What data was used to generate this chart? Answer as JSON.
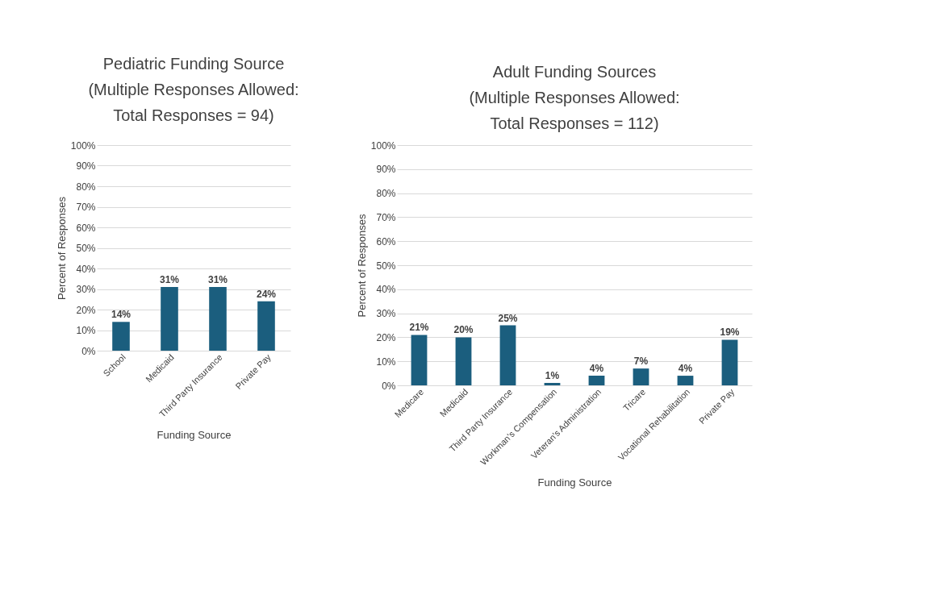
{
  "chart_data": [
    {
      "type": "bar",
      "title": "Pediatric Funding Source\n(Multiple Responses Allowed:\nTotal Responses = 94)",
      "xlabel": "Funding Source",
      "ylabel": "Percent of Responses",
      "categories": [
        "School",
        "Medicaid",
        "Third Party Insurance",
        "Private Pay"
      ],
      "series": [
        {
          "color": "#1b5e7e",
          "values": [
            14,
            31,
            31,
            24
          ],
          "value_labels": [
            "14%",
            "31%",
            "31%",
            "24%"
          ]
        }
      ],
      "ylim": [
        0,
        100
      ],
      "yticks": [
        {
          "value": 0,
          "label": "0%"
        },
        {
          "value": 10,
          "label": "10%"
        },
        {
          "value": 20,
          "label": "20%"
        },
        {
          "value": 30,
          "label": "30%"
        },
        {
          "value": 40,
          "label": "40%"
        },
        {
          "value": 50,
          "label": "50%"
        },
        {
          "value": 60,
          "label": "60%"
        },
        {
          "value": 70,
          "label": "70%"
        },
        {
          "value": 80,
          "label": "80%"
        },
        {
          "value": 90,
          "label": "90%"
        },
        {
          "value": 100,
          "label": "100%"
        }
      ],
      "grid": "y"
    },
    {
      "type": "bar",
      "title": "Adult Funding Sources\n(Multiple Responses Allowed:\nTotal Responses = 112)",
      "xlabel": "Funding Source",
      "ylabel": "Percent of Responses",
      "categories": [
        "Medicare",
        "Medicaid",
        "Third Party Insurance",
        "Workman's Compensation",
        "Veteran's Administration",
        "Tricare",
        "Vocational Rehabilitation",
        "Private Pay"
      ],
      "series": [
        {
          "color": "#1b5e7e",
          "values": [
            21,
            20,
            25,
            1,
            4,
            7,
            4,
            19
          ],
          "value_labels": [
            "21%",
            "20%",
            "25%",
            "1%",
            "4%",
            "7%",
            "4%",
            "19%"
          ]
        }
      ],
      "ylim": [
        0,
        100
      ],
      "yticks": [
        {
          "value": 0,
          "label": "0%"
        },
        {
          "value": 10,
          "label": "10%"
        },
        {
          "value": 20,
          "label": "20%"
        },
        {
          "value": 30,
          "label": "30%"
        },
        {
          "value": 40,
          "label": "40%"
        },
        {
          "value": 50,
          "label": "50%"
        },
        {
          "value": 60,
          "label": "60%"
        },
        {
          "value": 70,
          "label": "70%"
        },
        {
          "value": 80,
          "label": "80%"
        },
        {
          "value": 90,
          "label": "90%"
        },
        {
          "value": 100,
          "label": "100%"
        }
      ],
      "grid": "y"
    }
  ]
}
